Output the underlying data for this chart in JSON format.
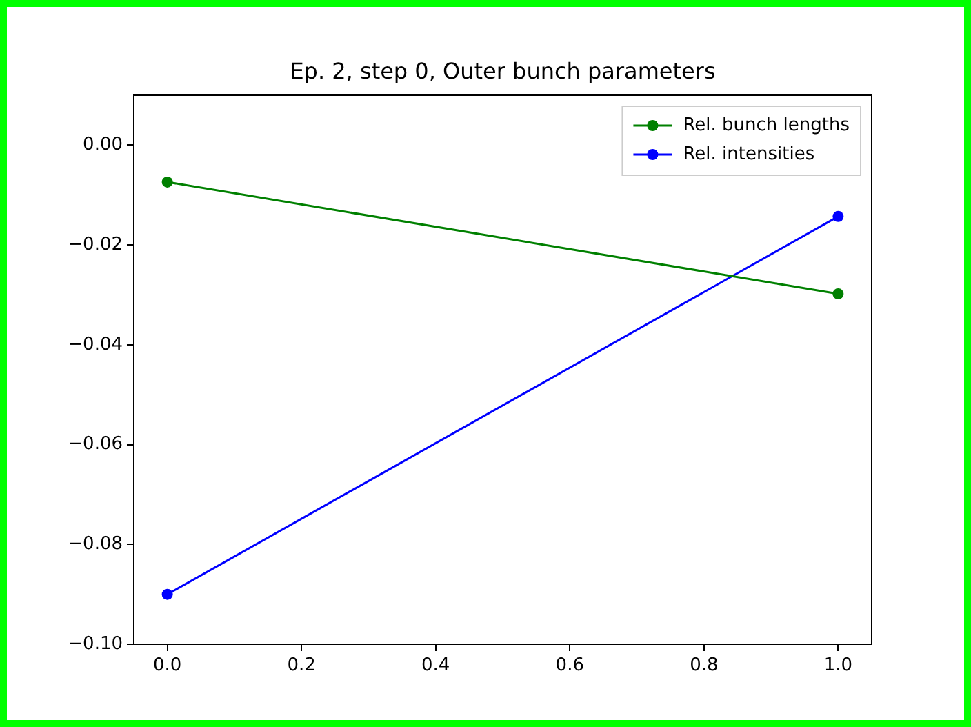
{
  "chart_data": {
    "type": "line",
    "title": "Ep. 2, step 0, Outer bunch parameters",
    "x": [
      0,
      1
    ],
    "series": [
      {
        "name": "Rel. bunch lengths",
        "color": "#008000",
        "values": [
          -0.0074,
          -0.0298
        ]
      },
      {
        "name": "Rel. intensities",
        "color": "#0000ff",
        "values": [
          -0.09,
          -0.0143
        ]
      }
    ],
    "xlim": [
      -0.05,
      1.05
    ],
    "xticks": [
      {
        "value": 0,
        "label": "0.0"
      },
      {
        "value": 0.2,
        "label": "0.2"
      },
      {
        "value": 0.4,
        "label": "0.4"
      },
      {
        "value": 0.6,
        "label": "0.6"
      },
      {
        "value": 0.8,
        "label": "0.8"
      },
      {
        "value": 1,
        "label": "1.0"
      }
    ],
    "ylim": [
      -0.1,
      0.01
    ],
    "yticks": [
      {
        "value": -0.1,
        "label": "−0.10"
      },
      {
        "value": -0.08,
        "label": "−0.08"
      },
      {
        "value": -0.06,
        "label": "−0.06"
      },
      {
        "value": -0.04,
        "label": "−0.04"
      },
      {
        "value": -0.02,
        "label": "−0.02"
      },
      {
        "value": 0,
        "label": "0.00"
      }
    ],
    "legend": "top right",
    "marker": "circle",
    "line_style": "solid",
    "grid": false
  }
}
